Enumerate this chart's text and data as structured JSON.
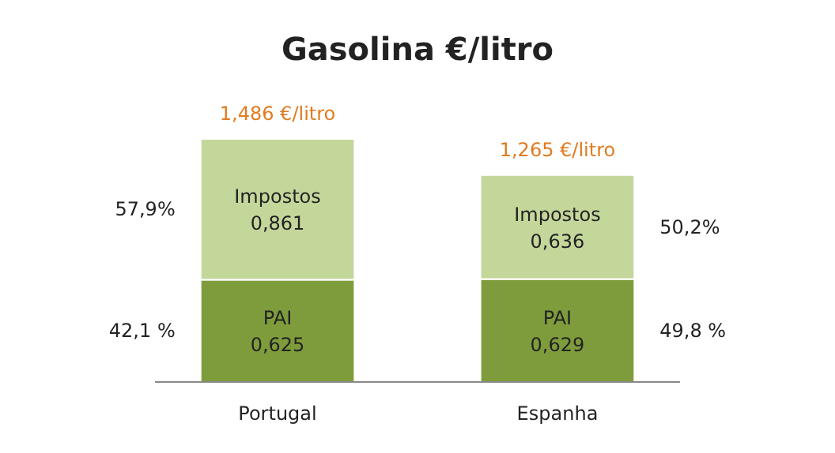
{
  "chart_data": {
    "type": "bar",
    "title": "Gasolina €/litro",
    "categories": [
      "Portugal",
      "Espanha"
    ],
    "stacked": true,
    "series": [
      {
        "name": "PAI",
        "color": "#7f9c3c",
        "values": [
          0.625,
          0.629
        ],
        "value_labels": [
          "0,625",
          "0,629"
        ]
      },
      {
        "name": "Impostos",
        "color": "#c4d79b",
        "values": [
          0.861,
          0.636
        ],
        "value_labels": [
          "0,861",
          "0,636"
        ]
      }
    ],
    "totals": [
      "1,486 €/litro",
      "1,265 €/litro"
    ],
    "annotations": [
      "57,9%",
      "42,1 %",
      "50,2%",
      "49,8 %"
    ]
  }
}
